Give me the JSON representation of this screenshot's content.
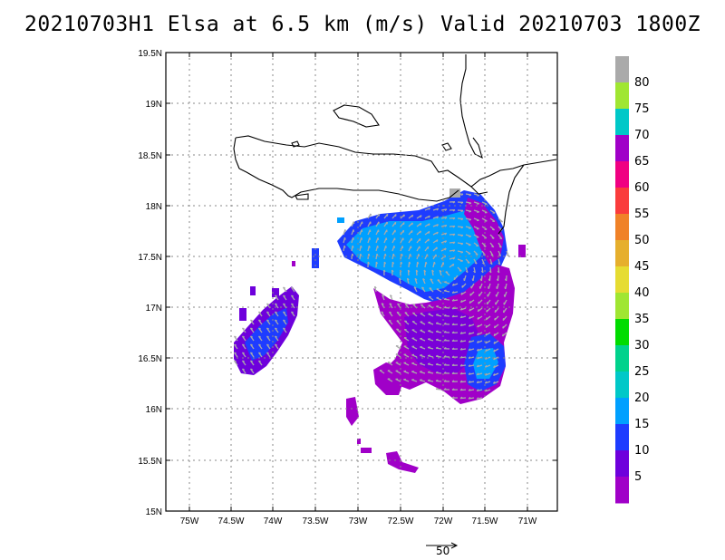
{
  "title": "20210703H1 Elsa at 6.5 km (m/s) Valid 20210703 1800Z",
  "lon_labels": [
    "75W",
    "74.5W",
    "74W",
    "73.5W",
    "73W",
    "72.5W",
    "72W",
    "71.5W",
    "71W"
  ],
  "lat_labels": [
    "19.5N",
    "19N",
    "18.5N",
    "18N",
    "17.5N",
    "17N",
    "16.5N",
    "16N",
    "15.5N",
    "15N"
  ],
  "colorbar": {
    "labels": [
      "5",
      "10",
      "15",
      "20",
      "25",
      "30",
      "35",
      "40",
      "45",
      "50",
      "55",
      "60",
      "65",
      "70",
      "75",
      "80"
    ],
    "colors": [
      "#a000c8",
      "#6e00dc",
      "#1e3cff",
      "#00a0ff",
      "#00c8c8",
      "#00d28c",
      "#00dc00",
      "#a0e632",
      "#e6dc32",
      "#e6af2d",
      "#f08228",
      "#fa3c3c",
      "#f00082",
      "#a000c8",
      "#00c8c8",
      "#a0e632",
      "#aaaaaa"
    ]
  },
  "reference_vector": {
    "value": "50"
  }
}
